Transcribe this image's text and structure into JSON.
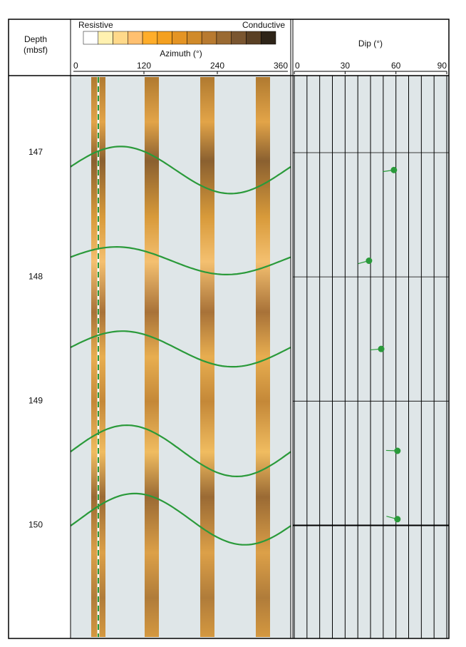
{
  "chart_data": {
    "type": "well_log",
    "y_label": [
      "Depth",
      "(mbsf)"
    ],
    "ylim": [
      146.38,
      150.91
    ],
    "yticks": [
      147,
      148,
      149,
      150
    ],
    "image": {
      "label": "Azimuth (°)",
      "left_label": "Resistive",
      "right_label": "Conductive",
      "colorbar": [
        "#ffffff",
        "#fff1b0",
        "#ffd98a",
        "#ffc070",
        "#ffad2a",
        "#f4a020",
        "#e49424",
        "#d08a2a",
        "#b87a30",
        "#9a6a32",
        "#7a5630",
        "#5a4024",
        "#2e2418"
      ],
      "xlim": [
        0,
        360
      ],
      "xticks": [
        0,
        120,
        240,
        360
      ]
    },
    "dip": {
      "label": "Dip (°)",
      "xlim": [
        0,
        90
      ],
      "xticks": [
        0,
        30,
        60,
        90
      ],
      "color": "#2a9a3a",
      "depths": [
        147.14,
        147.87,
        148.58,
        149.4,
        149.95
      ],
      "dips": [
        58.8,
        44.1,
        51.3,
        60.9,
        60.9
      ],
      "azimuths": [
        262,
        255,
        265,
        272,
        285
      ]
    }
  }
}
